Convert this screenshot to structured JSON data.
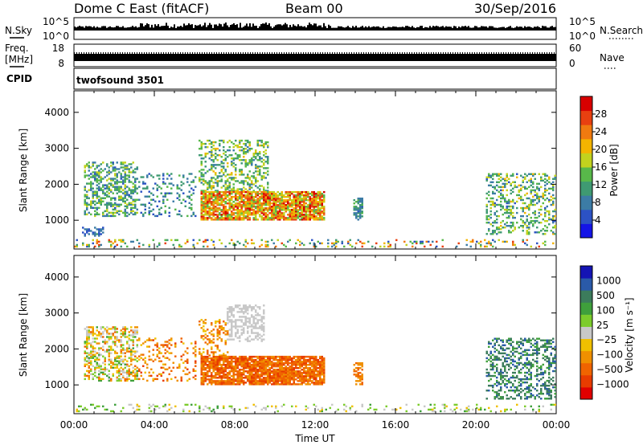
{
  "header": {
    "station": "Dome C East (fitACF)",
    "beam": "Beam 00",
    "date": "30/Sep/2016"
  },
  "aux": {
    "nsky_label": "N.Sky",
    "nsky_ticks": [
      "10^5",
      "10^0"
    ],
    "nsearch_label": "N.Search",
    "nsearch_ticks": [
      "10^5",
      "10^0"
    ],
    "freq_label": [
      "Freq.",
      "[MHz]"
    ],
    "freq_ticks": [
      "18",
      "8"
    ],
    "nave_label": "Nave",
    "nave_ticks": [
      "60",
      "0"
    ],
    "cpid_label": "CPID",
    "cpid_value": "twofsound 3501"
  },
  "chart_data": [
    {
      "type": "heatmap",
      "quantity": "power",
      "xlabel": "",
      "ylabel": "Slant Range [km]",
      "yticks": [
        "1000",
        "2000",
        "3000",
        "4000"
      ],
      "ylim": [
        200,
        4600
      ],
      "xlim_hours": [
        0,
        24
      ],
      "colorbar": {
        "label": "Power [dB]",
        "ticks": [
          "4",
          "8",
          "12",
          "16",
          "20",
          "24",
          "28"
        ],
        "range": [
          0,
          32
        ],
        "colors": [
          "#1414e6",
          "#2c52c4",
          "#3c7ca6",
          "#3f9a72",
          "#58b84a",
          "#c2d21e",
          "#f3b400",
          "#f07a10",
          "#e84010",
          "#d80000"
        ]
      },
      "regions": [
        {
          "t0": 0.5,
          "t1": 3.2,
          "r0": 1100,
          "r1": 2600,
          "density": 0.45,
          "v0": 6,
          "v1": 18
        },
        {
          "t0": 3.2,
          "t1": 6.0,
          "r0": 1100,
          "r1": 2300,
          "density": 0.2,
          "v0": 4,
          "v1": 14
        },
        {
          "t0": 6.2,
          "t1": 9.6,
          "r0": 1800,
          "r1": 3200,
          "density": 0.35,
          "v0": 8,
          "v1": 20
        },
        {
          "t0": 6.3,
          "t1": 12.4,
          "r0": 1000,
          "r1": 1800,
          "density": 0.85,
          "v0": 14,
          "v1": 30
        },
        {
          "t0": 0.3,
          "t1": 1.5,
          "r0": 550,
          "r1": 800,
          "density": 0.5,
          "v0": 3,
          "v1": 10
        },
        {
          "t0": 13.9,
          "t1": 14.3,
          "r0": 1000,
          "r1": 1600,
          "density": 0.5,
          "v0": 6,
          "v1": 14
        },
        {
          "t0": 20.5,
          "t1": 24.0,
          "r0": 600,
          "r1": 2300,
          "density": 0.35,
          "v0": 6,
          "v1": 20
        },
        {
          "t0": 0.0,
          "t1": 24.0,
          "r0": 250,
          "r1": 450,
          "density": 0.18,
          "v0": 4,
          "v1": 28
        }
      ]
    },
    {
      "type": "heatmap",
      "quantity": "velocity",
      "xlabel": "Time UT",
      "ylabel": "Slant Range [km]",
      "yticks": [
        "1000",
        "2000",
        "3000",
        "4000"
      ],
      "ylim": [
        200,
        4600
      ],
      "xticks": [
        "00:00",
        "04:00",
        "08:00",
        "12:00",
        "16:00",
        "20:00",
        "00:00"
      ],
      "xlim_hours": [
        0,
        24
      ],
      "colorbar": {
        "label": "Velocity [m s⁻¹]",
        "ticks": [
          "1000",
          "500",
          "100",
          "25",
          "−25",
          "−100",
          "−500",
          "−1000"
        ],
        "colors": [
          "#1414b4",
          "#2a5aa8",
          "#3c7c5c",
          "#3fa03c",
          "#7ccc2c",
          "#c8c8c8",
          "#f0c000",
          "#f09000",
          "#f06400",
          "#e83c00",
          "#e00000"
        ]
      },
      "regions": [
        {
          "t0": 0.5,
          "t1": 3.2,
          "r0": 1100,
          "r1": 2600,
          "density": 0.45,
          "c0": 3,
          "c1": 8
        },
        {
          "t0": 3.2,
          "t1": 6.0,
          "r0": 1100,
          "r1": 2300,
          "density": 0.2,
          "c0": 6,
          "c1": 9
        },
        {
          "t0": 7.6,
          "t1": 9.4,
          "r0": 2200,
          "r1": 3200,
          "density": 0.5,
          "c0": 5,
          "c1": 5
        },
        {
          "t0": 6.2,
          "t1": 7.6,
          "r0": 1800,
          "r1": 2800,
          "density": 0.3,
          "c0": 6,
          "c1": 8
        },
        {
          "t0": 6.3,
          "t1": 12.4,
          "r0": 1000,
          "r1": 1800,
          "density": 0.85,
          "c0": 7,
          "c1": 9
        },
        {
          "t0": 13.9,
          "t1": 14.3,
          "r0": 1000,
          "r1": 1600,
          "density": 0.5,
          "c0": 7,
          "c1": 8
        },
        {
          "t0": 20.5,
          "t1": 24.0,
          "r0": 600,
          "r1": 2300,
          "density": 0.35,
          "c0": 1,
          "c1": 3
        },
        {
          "t0": 0.0,
          "t1": 24.0,
          "r0": 250,
          "r1": 450,
          "density": 0.18,
          "c0": 3,
          "c1": 6
        }
      ]
    }
  ]
}
